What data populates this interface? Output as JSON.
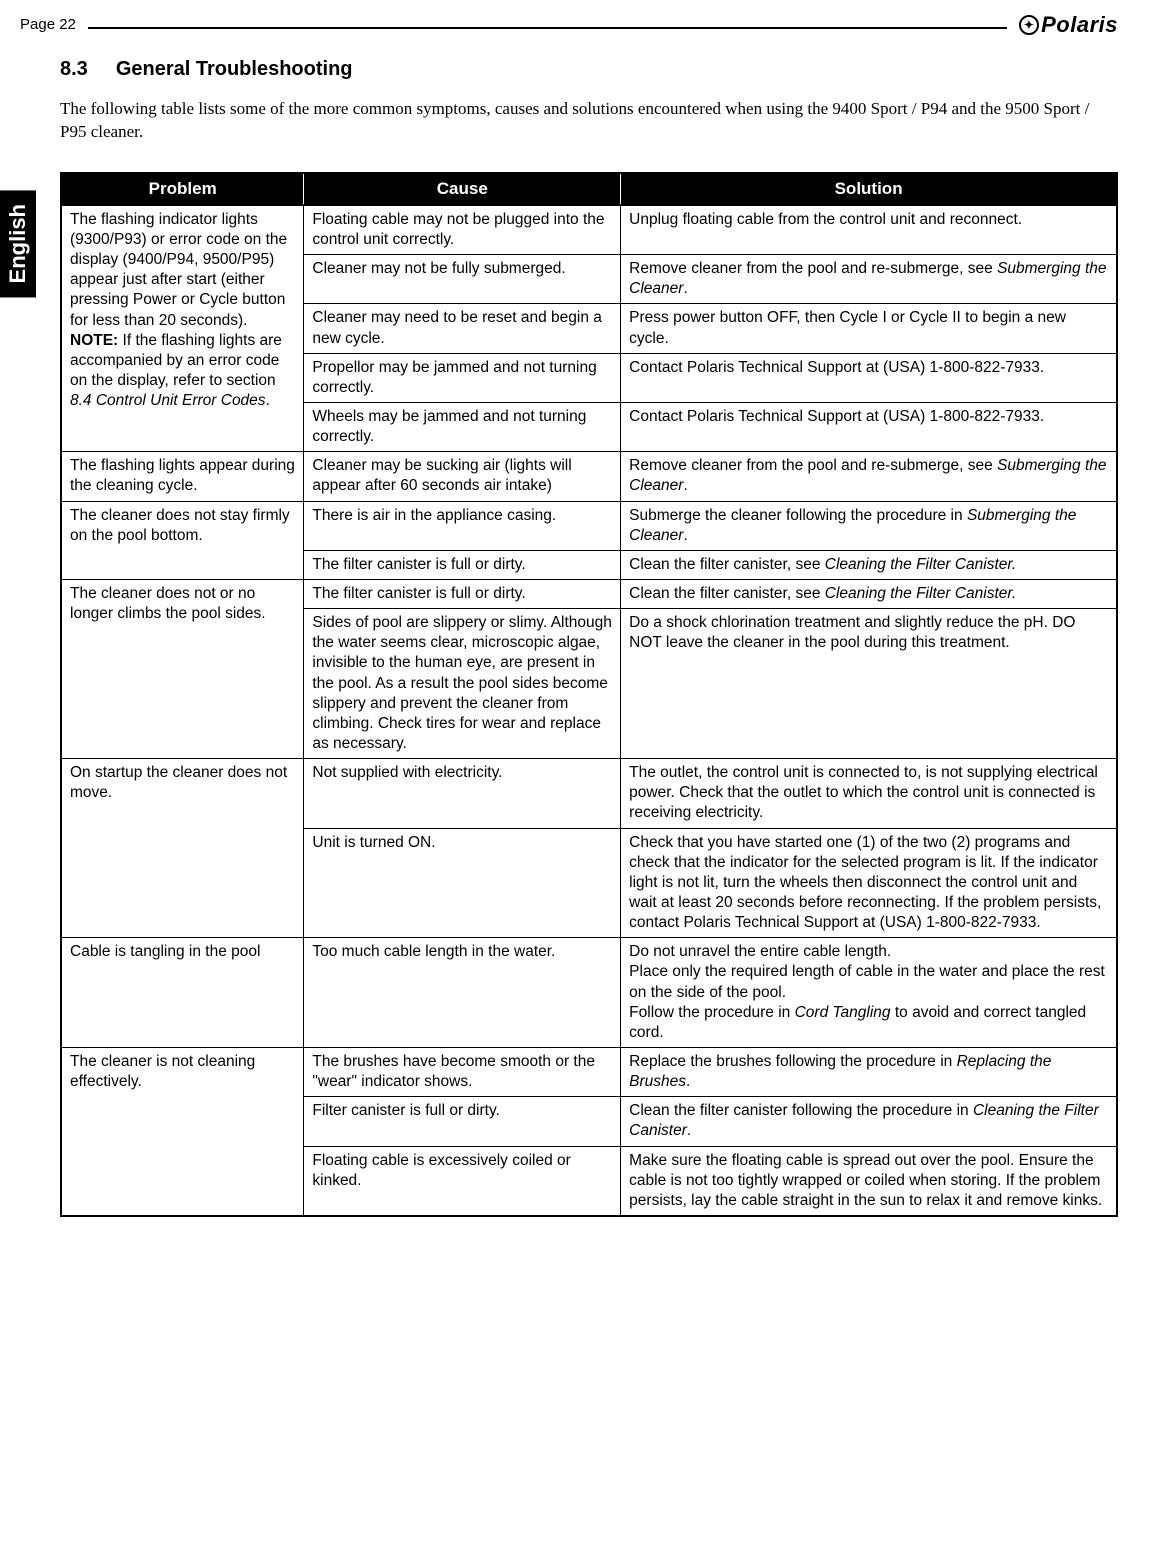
{
  "page_number": "Page 22",
  "brand": "Polaris",
  "lang_tab": "English",
  "section": {
    "number": "8.3",
    "title": "General Troubleshooting",
    "intro": "The following table lists some of the more common symptoms, causes and solutions encountered when using the 9400 Sport / P94 and the 9500 Sport / P95 cleaner."
  },
  "table": {
    "headers": [
      "Problem",
      "Cause",
      "Solution"
    ],
    "rows": [
      {
        "problem_html": "The flashing indicator lights (9300/P93) or error code on the display (9400/P94, 9500/P95) appear just after start (either pressing Power or Cycle button for less than 20 seconds).<br><b>NOTE:</b> If the flashing lights are accompanied by an error code on the display, refer to section <i>8.4 Control Unit Error Codes</i>.",
        "items": [
          {
            "cause": "Floating cable may not be plugged into the control unit correctly.",
            "solution": "Unplug floating cable from the control unit and reconnect."
          },
          {
            "cause": "Cleaner may not be fully submerged.",
            "solution_html": "Remove cleaner from the pool and re-submerge, see <i>Submerging the Cleaner</i>."
          },
          {
            "cause": "Cleaner may need to be reset and begin a new cycle.",
            "solution": "Press power button OFF, then Cycle I or Cycle II to begin a new cycle."
          },
          {
            "cause": "Propellor may be jammed and not turning correctly.",
            "solution": "Contact Polaris Technical Support at (USA) 1-800-822-7933."
          },
          {
            "cause": "Wheels may be jammed and not turning correctly.",
            "solution": "Contact Polaris Technical Support at (USA) 1-800-822-7933."
          }
        ]
      },
      {
        "problem": "The flashing lights appear during the cleaning cycle.",
        "items": [
          {
            "cause": "Cleaner may be sucking air (lights will appear after 60 seconds air intake)",
            "solution_html": "Remove cleaner from the pool and re-submerge, see <i>Submerging the Cleaner</i>."
          }
        ]
      },
      {
        "problem": "The cleaner does not stay firmly on the pool bottom.",
        "items": [
          {
            "cause": "There is air in the appliance casing.",
            "solution_html": "Submerge the cleaner following the procedure in <i>Submerging the Cleaner</i>."
          },
          {
            "cause": "The filter canister is full or dirty.",
            "solution_html": "Clean the filter canister, see <i>Cleaning the Filter Canister.</i>"
          }
        ]
      },
      {
        "problem": "The cleaner does not or no longer climbs the pool sides.",
        "items": [
          {
            "cause": "The filter canister is full or dirty.",
            "solution_html": "Clean the filter canister, see <i>Cleaning the Filter Canister.</i>"
          },
          {
            "cause": "Sides of pool are slippery or slimy. Although the water seems clear, microscopic algae, invisible to the human eye, are present in the pool. As a result the pool sides become slippery and prevent the cleaner from climbing. Check tires for wear and replace as necessary.",
            "solution": "Do a shock chlorination treatment and slightly reduce the pH. DO NOT leave the cleaner in the pool during this treatment."
          }
        ]
      },
      {
        "problem": "On startup the cleaner does not move.",
        "items": [
          {
            "cause": "Not supplied with electricity.",
            "solution": "The outlet, the control unit is connected to, is not supplying electrical power. Check that the outlet to which the control unit is connected is receiving electricity."
          },
          {
            "cause": "Unit is turned ON.",
            "solution": "Check that you have started one (1) of the two (2) programs and check that the indicator for the selected program is lit. If the indicator light is not lit, turn the wheels then disconnect the control unit and wait at least 20 seconds before reconnecting. If the problem persists, contact Polaris Technical Support at (USA) 1-800-822-7933."
          }
        ]
      },
      {
        "problem": "Cable is tangling in the pool",
        "items": [
          {
            "cause": "Too much cable length in the water.",
            "solution_html": "Do not unravel the entire cable length.<br>Place only the required length of cable in the water and place the rest on the side of the pool.<br>Follow the procedure in <i>Cord Tangling</i> to avoid and correct tangled cord."
          }
        ]
      },
      {
        "problem": "The cleaner is not cleaning effectively.",
        "items": [
          {
            "cause": "The brushes have become smooth or the \"wear\" indicator shows.",
            "solution_html": "Replace the brushes following the procedure in <i>Replacing the Brushes</i>."
          },
          {
            "cause": "Filter canister is full or dirty.",
            "solution_html": "Clean the filter canister following the procedure in <i>Cleaning the Filter Canister</i>."
          },
          {
            "cause": "Floating cable is excessively coiled or kinked.",
            "solution": "Make sure the floating cable is spread out over the pool. Ensure the cable is not too tightly wrapped or coiled when storing. If the problem persists, lay the cable straight in the sun to relax it and remove kinks."
          }
        ]
      }
    ]
  }
}
